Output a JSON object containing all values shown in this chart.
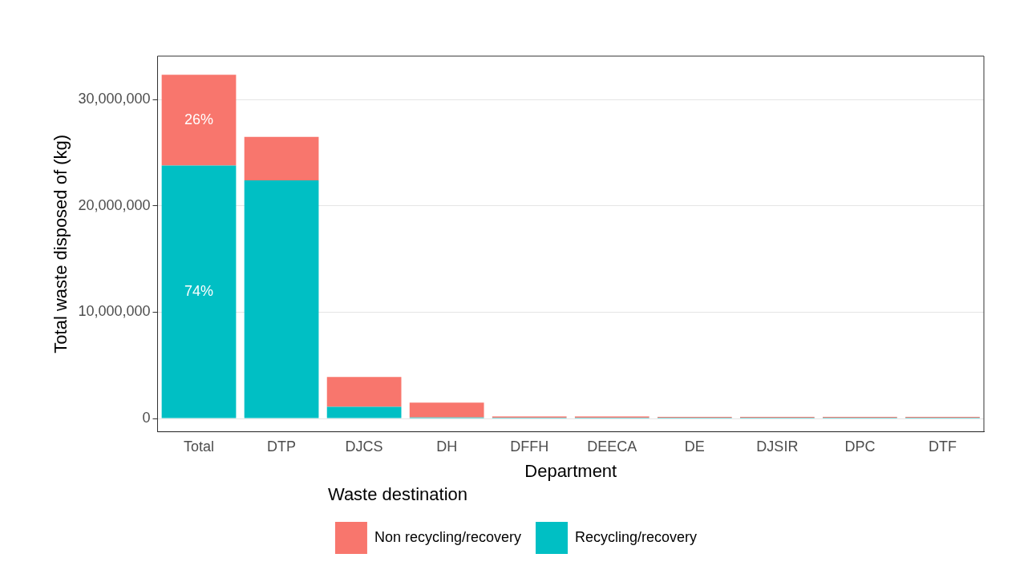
{
  "chart_data": {
    "type": "bar",
    "xlabel": "Department",
    "ylabel": "Total waste disposed of (kg)",
    "legend_title": "Waste destination",
    "categories": [
      "Total",
      "DTP",
      "DJCS",
      "DH",
      "DFFH",
      "DEECA",
      "DE",
      "DJSIR",
      "DPC",
      "DTF"
    ],
    "series": [
      {
        "name": "Recycling/recovery",
        "color": "#00bfc4",
        "values": [
          23800000,
          22400000,
          1100000,
          100000,
          30000,
          30000,
          20000,
          10000,
          10000,
          10000
        ]
      },
      {
        "name": "Non recycling/recovery",
        "color": "#f8766d",
        "values": [
          8550000,
          4100000,
          2800000,
          1400000,
          120000,
          110000,
          60000,
          20000,
          10000,
          10000
        ]
      }
    ],
    "stacked": true,
    "ylim": [
      -1250000,
      34100000
    ],
    "yticks": [
      {
        "value": 0,
        "label": "0"
      },
      {
        "value": 10000000,
        "label": "10,000,000"
      },
      {
        "value": 20000000,
        "label": "20,000,000"
      },
      {
        "value": 30000000,
        "label": "30,000,000"
      }
    ],
    "grid": "y",
    "legend": "bottom",
    "annotations": [
      "74%",
      "26%"
    ]
  }
}
